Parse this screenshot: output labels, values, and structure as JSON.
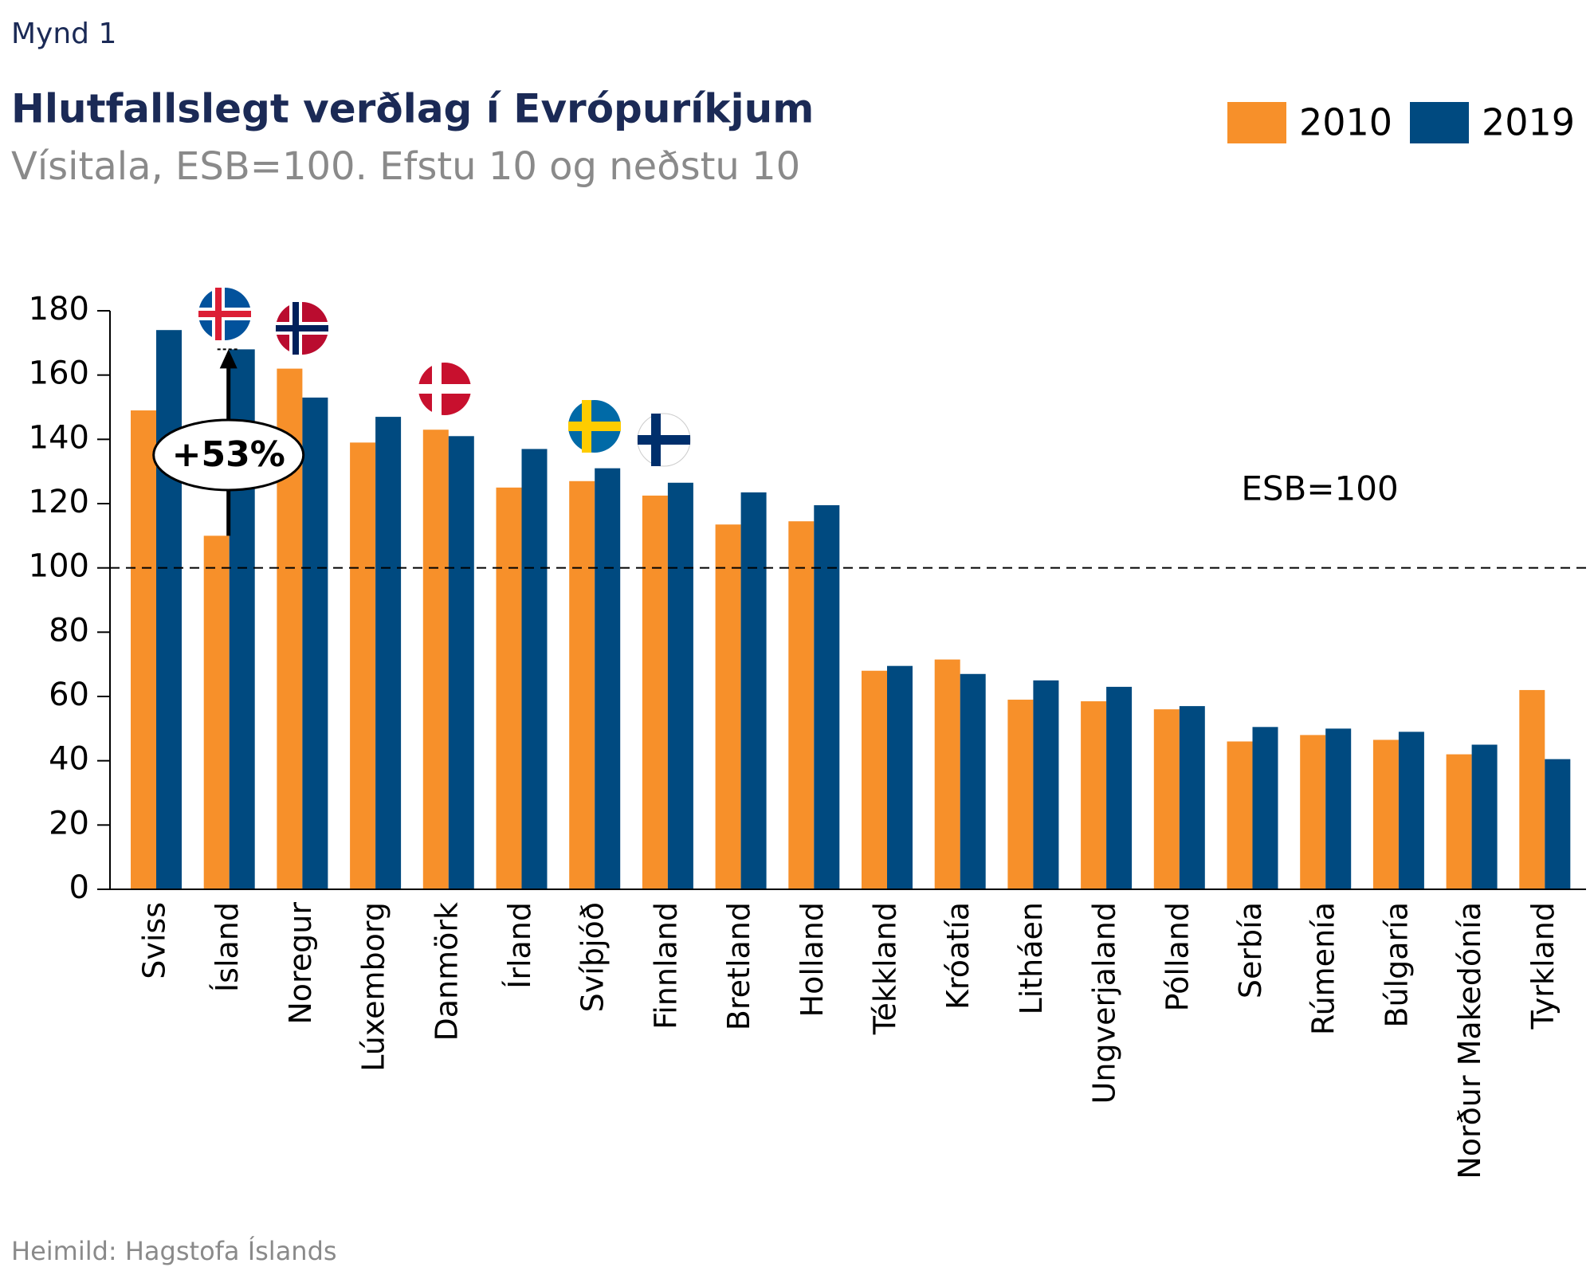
{
  "figure_label": "Mynd 1",
  "chart_data": {
    "type": "bar",
    "title": "Hlutfallslegt verðlag í Evrópuríkjum",
    "subtitle": "Vísitala, ESB=100. Efstu 10 og neðstu 10",
    "categories": [
      "Sviss",
      "Ísland",
      "Noregur",
      "Lúxemborg",
      "Danmörk",
      "Írland",
      "Svíþjóð",
      "Finnland",
      "Bretland",
      "Holland",
      "Tékkland",
      "Króatía",
      "Litháen",
      "Ungverjaland",
      "Pólland",
      "Serbía",
      "Rúmenía",
      "Búlgaría",
      "Norður Makedónía",
      "Tyrkland"
    ],
    "series": [
      {
        "name": "2010",
        "color": "#f7902a",
        "values": [
          149,
          110,
          162,
          139,
          143,
          125,
          127,
          122.5,
          113.5,
          114.5,
          68,
          71.5,
          59,
          58.5,
          56,
          46,
          48,
          46.5,
          42,
          62
        ]
      },
      {
        "name": "2019",
        "color": "#004a80",
        "values": [
          174,
          168,
          153,
          147,
          141,
          137,
          131,
          126.5,
          123.5,
          119.5,
          69.5,
          67,
          65,
          63,
          57,
          50.5,
          50,
          49,
          45,
          40.5
        ]
      }
    ],
    "ylim": [
      0,
      180
    ],
    "yticks": [
      0,
      20,
      40,
      60,
      80,
      100,
      120,
      140,
      160,
      180
    ],
    "reference_line": {
      "value": 100,
      "label": "ESB=100"
    },
    "annotation": "+53%",
    "legend": "top-right"
  },
  "source": "Heimild: Hagstofa Íslands"
}
